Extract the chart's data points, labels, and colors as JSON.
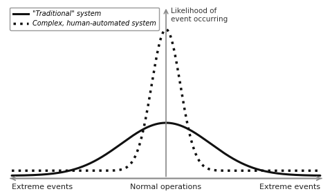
{
  "title_y": "Likelihood of\nevent occurring",
  "xlabel_left": "Extreme events",
  "xlabel_center": "Normal operations",
  "xlabel_right": "Extreme events",
  "legend_solid": "\"Traditional\" system",
  "legend_dotted": "Complex, human-automated system",
  "traditional_sigma": 1.3,
  "traditional_amplitude": 0.58,
  "complex_sigma": 0.42,
  "complex_amplitude": 1.55,
  "complex_baseline": 0.055,
  "x_range": [
    -4.5,
    4.5
  ],
  "background_color": "#ffffff",
  "curve_color": "#111111",
  "axis_color": "#888888",
  "figsize": [
    4.8,
    2.84
  ],
  "dpi": 100
}
